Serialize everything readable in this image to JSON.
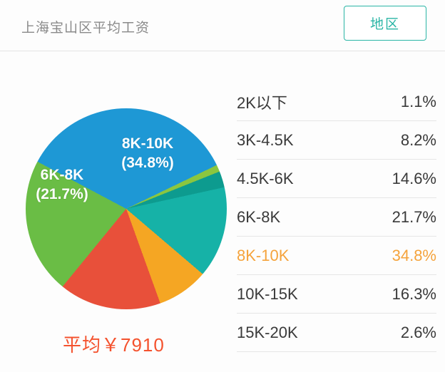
{
  "header": {
    "title": "上海宝山区平均工资",
    "region_button_label": "地区"
  },
  "colors": {
    "accent_teal": "#2ab5a5",
    "highlight_orange": "#f5a33c",
    "average_red": "#f4522e",
    "blue": "#1e98d5",
    "green": "#6abd45",
    "teal": "#16b2a7",
    "orange": "#f5a623",
    "red": "#e8503a"
  },
  "chart_data": {
    "type": "pie",
    "title": "上海宝山区平均工资",
    "categories": [
      "2K以下",
      "3K-4.5K",
      "4.5K-6K",
      "6K-8K",
      "8K-10K",
      "10K-15K",
      "15K-20K"
    ],
    "values": [
      1.1,
      8.2,
      14.6,
      21.7,
      34.8,
      16.3,
      2.6
    ],
    "highlighted_category": "8K-10K",
    "average_label": "平均￥7910",
    "legend_position": "right",
    "start_angle_deg": -62,
    "slices": [
      {
        "label": "8K-10K",
        "value": 34.8,
        "color": "#1e98d5"
      },
      {
        "label": "2K以下",
        "value": 1.1,
        "color": "#8bc63f"
      },
      {
        "label": "15K-20K",
        "value": 2.6,
        "color": "#0d9b8f"
      },
      {
        "label": "4.5K-6K",
        "value": 14.6,
        "color": "#16b2a7"
      },
      {
        "label": "3K-4.5K",
        "value": 8.2,
        "color": "#f5a623"
      },
      {
        "label": "10K-15K",
        "value": 16.3,
        "color": "#e8503a"
      },
      {
        "label": "6K-8K",
        "value": 21.7,
        "color": "#6abd45"
      }
    ],
    "pie_label_blue": {
      "line1": "8K-10K",
      "line2": "(34.8%)"
    },
    "pie_label_green": {
      "line1": "6K-8K",
      "line2": "(21.7%)"
    }
  },
  "table": {
    "rows": [
      {
        "label": "2K以下",
        "value": "1.1%",
        "highlight": false
      },
      {
        "label": "3K-4.5K",
        "value": "8.2%",
        "highlight": false
      },
      {
        "label": "4.5K-6K",
        "value": "14.6%",
        "highlight": false
      },
      {
        "label": "6K-8K",
        "value": "21.7%",
        "highlight": false
      },
      {
        "label": "8K-10K",
        "value": "34.8%",
        "highlight": true
      },
      {
        "label": "10K-15K",
        "value": "16.3%",
        "highlight": false
      },
      {
        "label": "15K-20K",
        "value": "2.6%",
        "highlight": false
      }
    ]
  }
}
